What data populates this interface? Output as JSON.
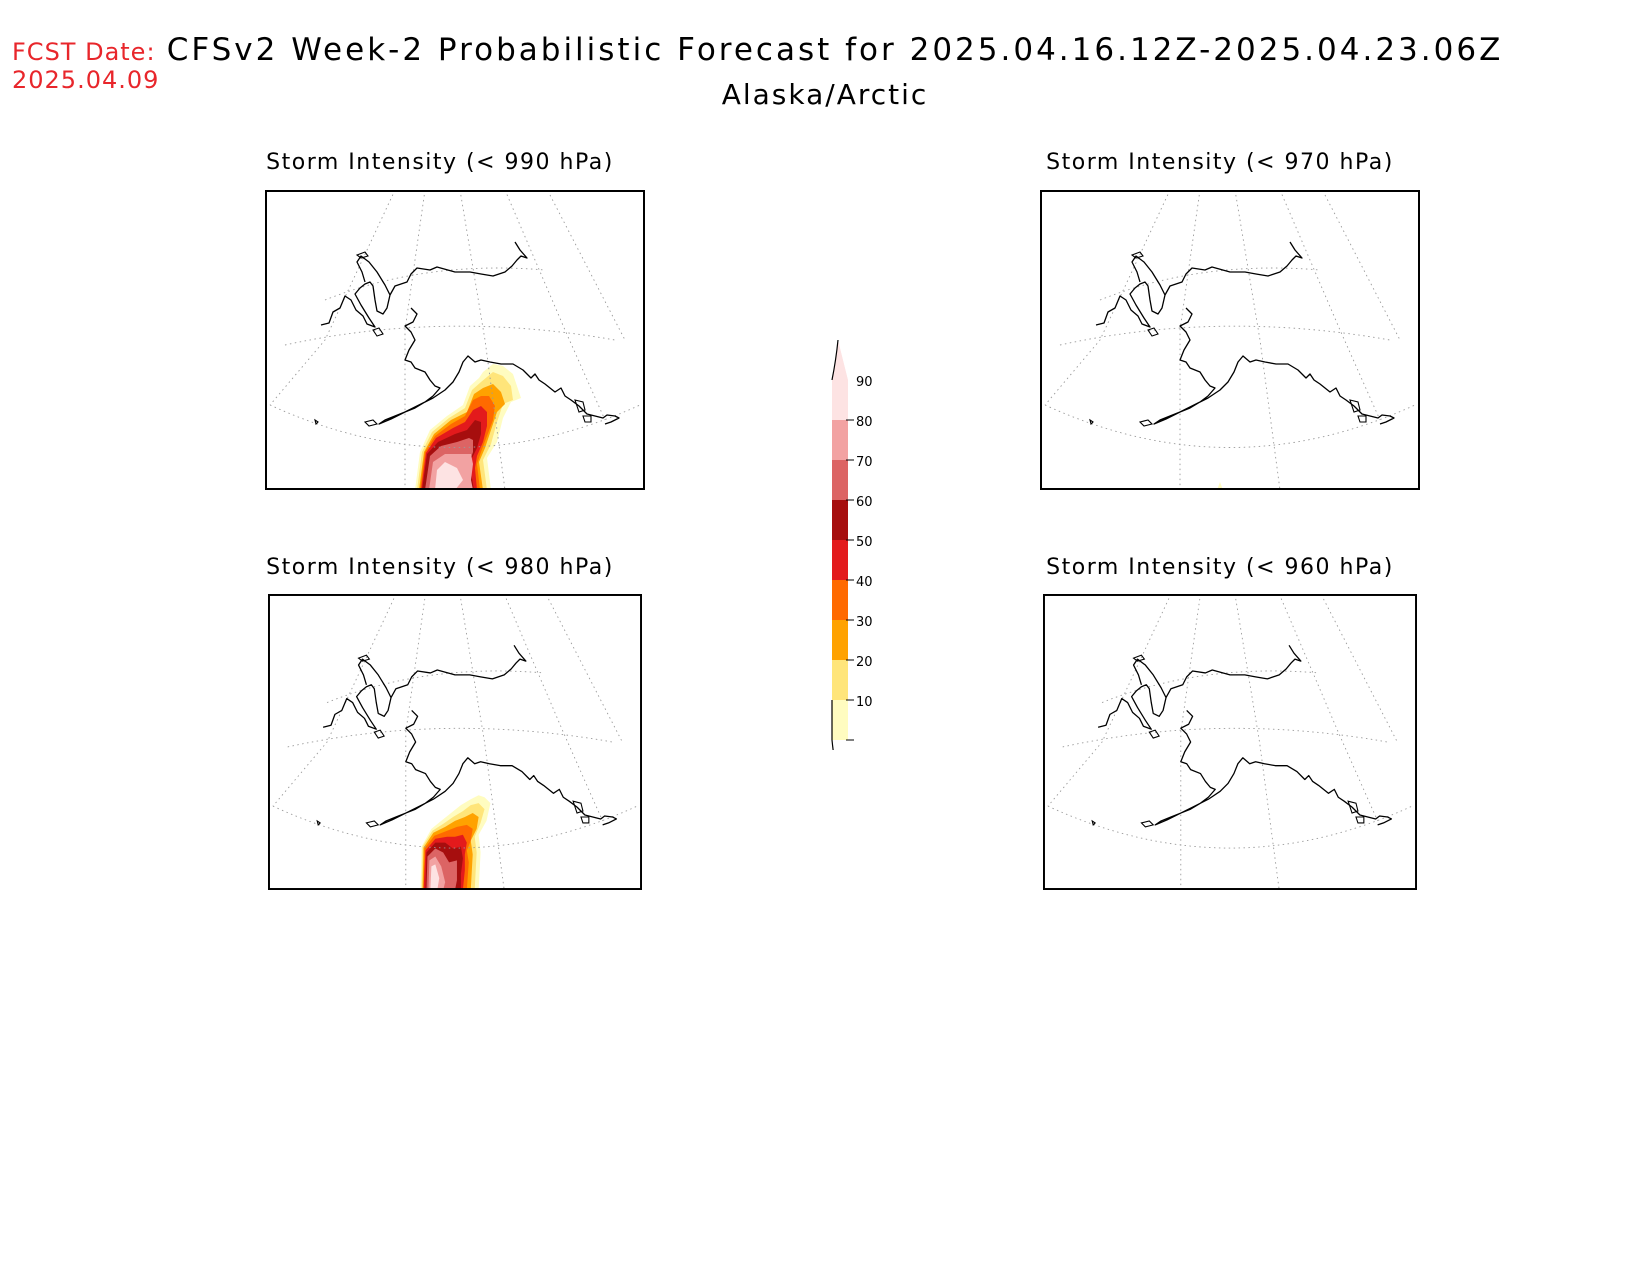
{
  "header": {
    "fcst_label": "FCST Date:",
    "fcst_date": "2025.04.09",
    "title": "CFSv2 Week-2 Probabilistic Forecast for 2025.04.16.12Z-2025.04.23.06Z",
    "subtitle": "Alaska/Arctic"
  },
  "panels": [
    {
      "title": "Storm Intensity (< 990 hPa)",
      "blob": "large"
    },
    {
      "title": "Storm Intensity (< 970 hPa)",
      "blob": "tiny"
    },
    {
      "title": "Storm Intensity (< 980 hPa)",
      "blob": "medium"
    },
    {
      "title": "Storm Intensity (< 960 hPa)",
      "blob": "none"
    }
  ],
  "colorbar": {
    "labels": [
      "90",
      "80",
      "70",
      "60",
      "50",
      "40",
      "30",
      "20",
      "10"
    ],
    "colors": [
      "#fde3e3",
      "#f2a2a2",
      "#dc6464",
      "#a60e0e",
      "#e31a1c",
      "#ff6a00",
      "#ffa200",
      "#ffe57a",
      "#fffcc0"
    ]
  }
}
